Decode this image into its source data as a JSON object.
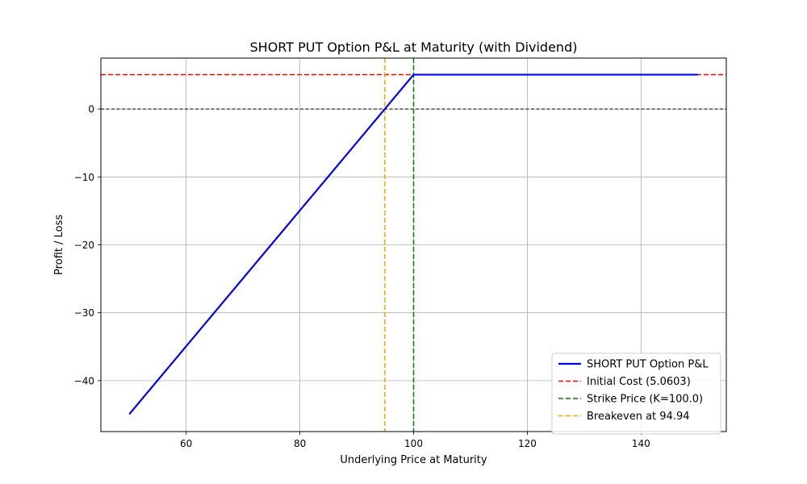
{
  "chart_data": {
    "type": "line",
    "title": "SHORT PUT Option P&L at Maturity (with Dividend)",
    "xlabel": "Underlying Price at Maturity",
    "ylabel": "Profit / Loss",
    "xlim": [
      45,
      155
    ],
    "ylim": [
      -47.5,
      7.5
    ],
    "xticks": [
      60,
      80,
      100,
      120,
      140
    ],
    "yticks": [
      -40,
      -30,
      -20,
      -10,
      0
    ],
    "grid": true,
    "legend_position": "lower-right",
    "series": [
      {
        "name": "SHORT PUT Option P&L",
        "style": "solid",
        "color": "#0000ff",
        "x": [
          50,
          100,
          150
        ],
        "y": [
          -44.94,
          5.06,
          5.06
        ]
      }
    ],
    "reference_lines": [
      {
        "name": "Initial Cost (5.0603)",
        "orientation": "horizontal",
        "value": 5.06,
        "color": "#ff0000",
        "style": "dashed"
      },
      {
        "name": "Strike Price (K=100.0)",
        "orientation": "vertical",
        "value": 100.0,
        "color": "#008000",
        "style": "dashed"
      },
      {
        "name": "Breakeven at 94.94",
        "orientation": "vertical",
        "value": 94.94,
        "color": "#ffa500",
        "style": "dashed"
      },
      {
        "name": "",
        "orientation": "horizontal",
        "value": 0,
        "color": "#000000",
        "style": "dashed"
      }
    ]
  }
}
